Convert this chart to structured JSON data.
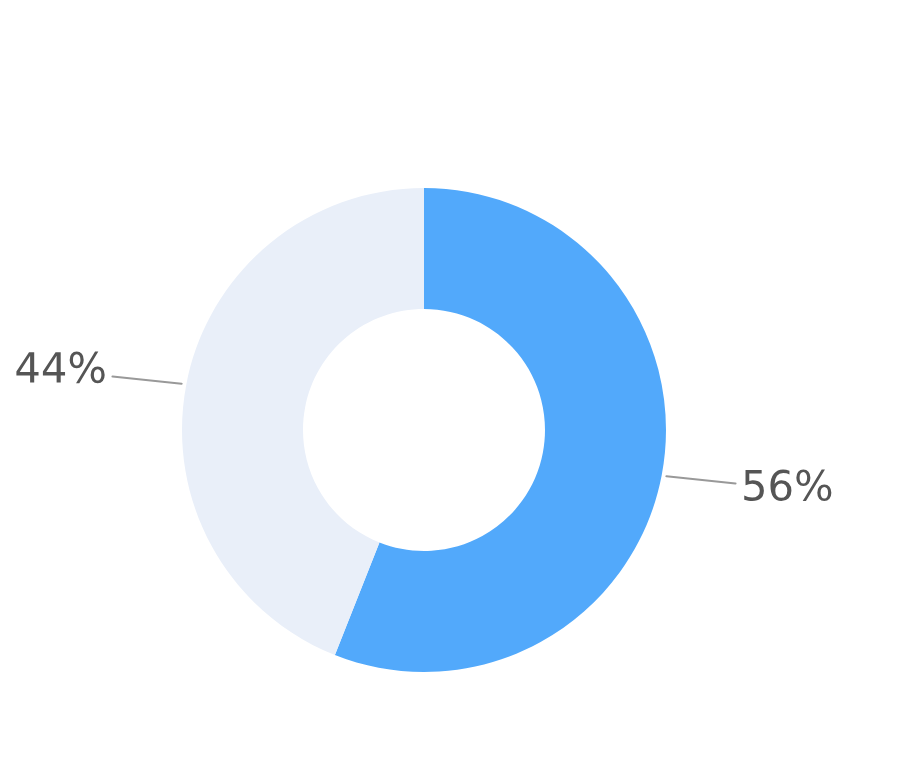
{
  "chart_data": {
    "type": "donut",
    "categories": [
      null,
      null
    ],
    "values": [
      56,
      44
    ],
    "colors": [
      "#52a9fb",
      "#e9eff9"
    ],
    "value_labels": [
      "56%",
      "44%"
    ]
  }
}
